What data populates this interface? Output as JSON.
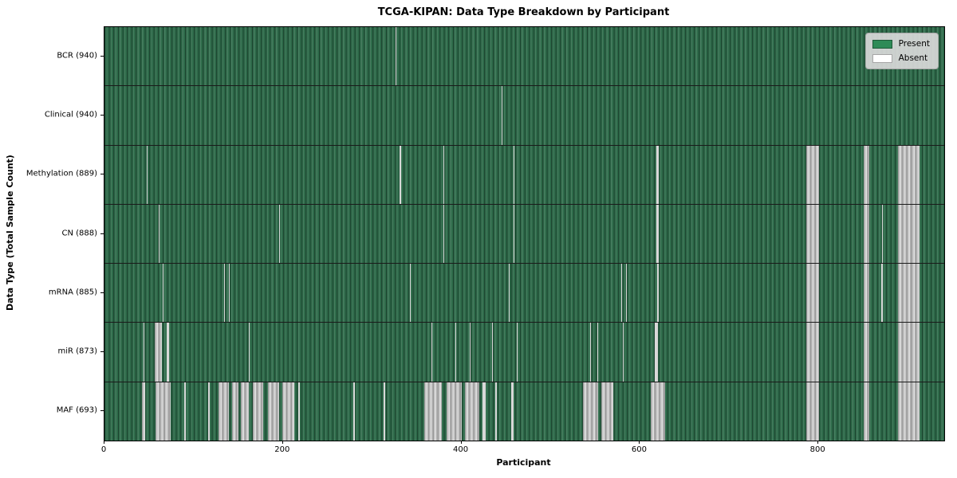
{
  "chart_data": {
    "type": "heatmap",
    "title": "TCGA-KIPAN: Data Type Breakdown by Participant",
    "xlabel": "Participant",
    "ylabel": "Data Type (Total Sample Count)",
    "x_ticks": [
      0,
      200,
      400,
      600,
      800
    ],
    "x_range": [
      0,
      941
    ],
    "n_participants": 941,
    "grid": false,
    "legend": {
      "position": "upper-right",
      "entries": [
        {
          "label": "Present",
          "color": "#2e8b57"
        },
        {
          "label": "Absent",
          "color": "#ffffff"
        }
      ]
    },
    "colors": {
      "present": "#2e8b57",
      "present_texture_dark": "#1b5434",
      "absent": "#ffffff",
      "absent_rendered_gray": "#bdbdbd",
      "row_divider": "#1a1a1a"
    },
    "rows": [
      {
        "key": "bcr",
        "label": "BCR (940)",
        "present_count": 940,
        "absent_ranges": [
          [
            326,
            327
          ]
        ]
      },
      {
        "key": "clinical",
        "label": "Clinical (940)",
        "present_count": 940,
        "absent_ranges": [
          [
            445,
            446
          ]
        ]
      },
      {
        "key": "methylation",
        "label": "Methylation (889)",
        "present_count": 889,
        "absent_ranges": [
          [
            47,
            48
          ],
          [
            331,
            332
          ],
          [
            380,
            381
          ],
          [
            458,
            459
          ],
          [
            618,
            621
          ],
          [
            786,
            801
          ],
          [
            851,
            857
          ],
          [
            889,
            913
          ]
        ]
      },
      {
        "key": "cn",
        "label": "CN (888)",
        "present_count": 888,
        "absent_ranges": [
          [
            61,
            62
          ],
          [
            196,
            197
          ],
          [
            380,
            381
          ],
          [
            458,
            459
          ],
          [
            618,
            621
          ],
          [
            786,
            801
          ],
          [
            851,
            857
          ],
          [
            871,
            872
          ],
          [
            889,
            913
          ]
        ]
      },
      {
        "key": "mrna",
        "label": "mRNA (885)",
        "present_count": 885,
        "absent_ranges": [
          [
            65,
            66
          ],
          [
            134,
            135
          ],
          [
            139,
            140
          ],
          [
            342,
            343
          ],
          [
            453,
            454
          ],
          [
            579,
            580
          ],
          [
            584,
            585
          ],
          [
            619,
            621
          ],
          [
            786,
            801
          ],
          [
            851,
            857
          ],
          [
            870,
            872
          ],
          [
            889,
            913
          ]
        ]
      },
      {
        "key": "mir",
        "label": "miR (873)",
        "present_count": 873,
        "absent_ranges": [
          [
            44,
            45
          ],
          [
            56,
            64
          ],
          [
            70,
            72
          ],
          [
            162,
            163
          ],
          [
            366,
            367
          ],
          [
            393,
            394
          ],
          [
            409,
            410
          ],
          [
            434,
            435
          ],
          [
            462,
            463
          ],
          [
            544,
            545
          ],
          [
            552,
            553
          ],
          [
            581,
            582
          ],
          [
            617,
            620
          ],
          [
            786,
            801
          ],
          [
            851,
            857
          ],
          [
            889,
            913
          ]
        ]
      },
      {
        "key": "maf",
        "label": "MAF (693)",
        "present_count": 693,
        "absent_ranges": [
          [
            42,
            46
          ],
          [
            57,
            74
          ],
          [
            89,
            91
          ],
          [
            116,
            118
          ],
          [
            128,
            139
          ],
          [
            143,
            150
          ],
          [
            153,
            162
          ],
          [
            166,
            178
          ],
          [
            183,
            196
          ],
          [
            199,
            213
          ],
          [
            217,
            219
          ],
          [
            279,
            281
          ],
          [
            313,
            315
          ],
          [
            358,
            378
          ],
          [
            383,
            400
          ],
          [
            404,
            420
          ],
          [
            424,
            427
          ],
          [
            438,
            440
          ],
          [
            456,
            458
          ],
          [
            536,
            553
          ],
          [
            557,
            570
          ],
          [
            612,
            628
          ],
          [
            786,
            801
          ],
          [
            851,
            857
          ],
          [
            889,
            913
          ]
        ]
      }
    ]
  }
}
